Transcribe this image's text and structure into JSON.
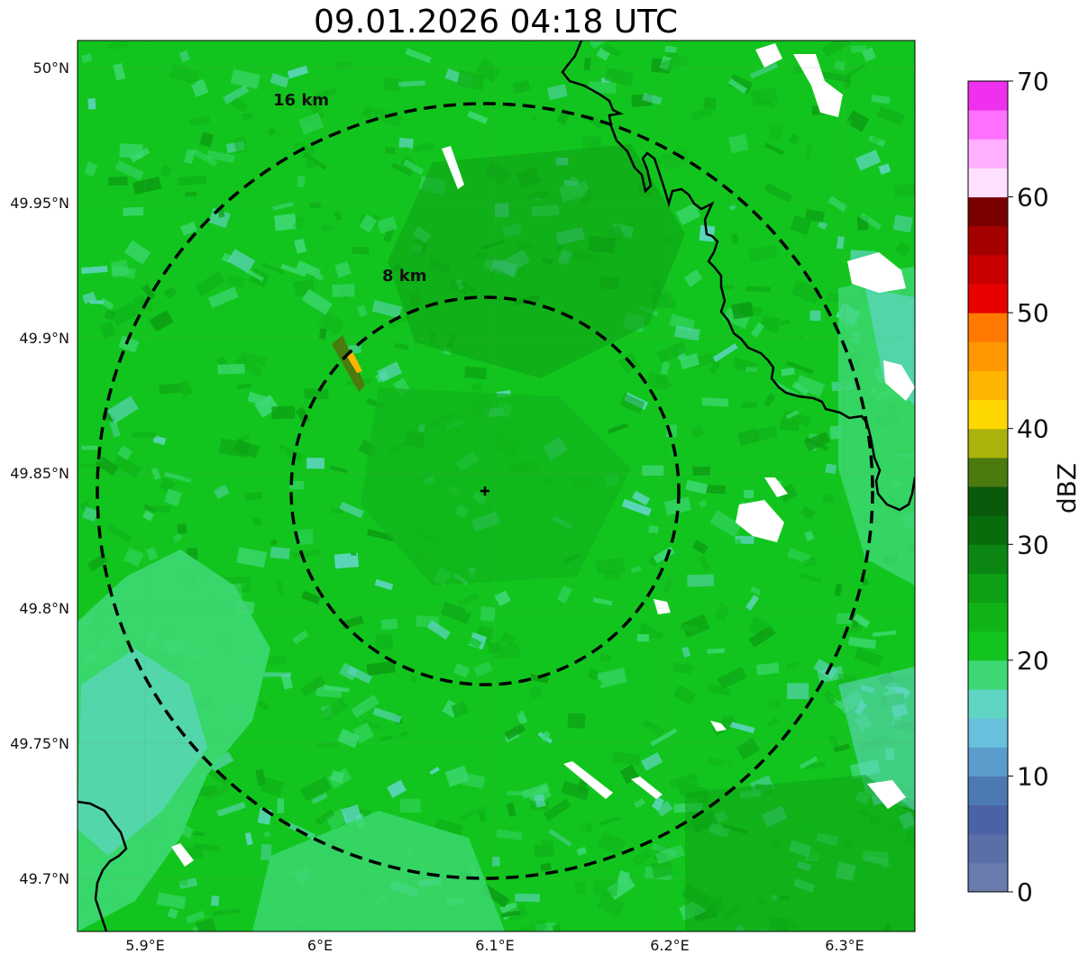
{
  "title": "09.01.2026 04:18 UTC",
  "map": {
    "lon_ticks": [
      "5.9°E",
      "6°E",
      "6.1°E",
      "6.2°E",
      "6.3°E"
    ],
    "lat_ticks": [
      "50°N",
      "49.95°N",
      "49.9°N",
      "49.85°N",
      "49.8°N",
      "49.75°N",
      "49.7°N"
    ],
    "range_rings": [
      {
        "label": "8 km"
      },
      {
        "label": "16 km"
      }
    ],
    "radar_marker": "plus-marker"
  },
  "colorbar": {
    "label": "dBZ",
    "ticks": [
      "0",
      "10",
      "20",
      "30",
      "40",
      "50",
      "60",
      "70"
    ],
    "colors": [
      "#6a7bad",
      "#5a6fa8",
      "#4a63a6",
      "#4d79b3",
      "#5a9ccc",
      "#68c0dd",
      "#5fd5c3",
      "#3dd873",
      "#12c51e",
      "#10b418",
      "#0e9f14",
      "#0c8612",
      "#086c0d",
      "#0a5a0b",
      "#4b7a0f",
      "#aab30a",
      "#ffd700",
      "#ffb400",
      "#ff9700",
      "#ff7800",
      "#e80000",
      "#c80000",
      "#a50000",
      "#7a0000",
      "#ffe0ff",
      "#ffb0ff",
      "#ff70ff",
      "#ef30ef"
    ]
  },
  "palette": {
    "base": "#12c51e",
    "dark": "#0fb419",
    "darker": "#0c9f14",
    "light": "#3dd873",
    "cyan": "#60d6c4",
    "border": "#000000"
  }
}
